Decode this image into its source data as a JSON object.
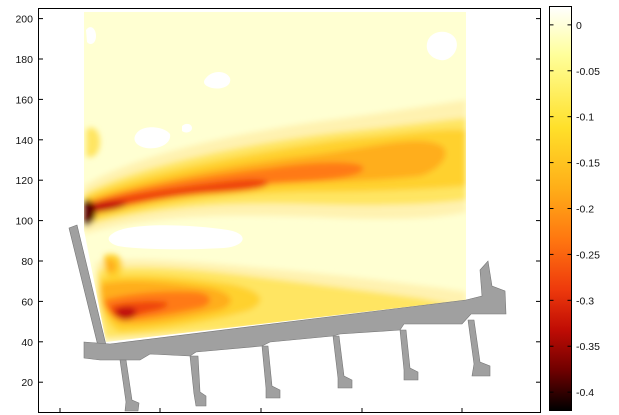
{
  "chart_data": {
    "type": "heatmap",
    "title": "",
    "xlabel": "",
    "ylabel": "",
    "colormap": "hot",
    "ylim": [
      5,
      205
    ],
    "y_ticks": [
      20,
      40,
      60,
      80,
      100,
      120,
      140,
      160,
      180,
      200
    ],
    "colorbar": {
      "range": [
        -0.42,
        0.02
      ],
      "ticks": [
        0,
        -0.05,
        -0.1,
        -0.15,
        -0.2,
        -0.25,
        -0.3,
        -0.35,
        -0.4
      ],
      "tick_labels": [
        "0",
        "-0.05",
        "-0.1",
        "-0.15",
        "-0.2",
        "-0.25",
        "-0.3",
        "-0.35",
        "-0.4"
      ]
    },
    "contour_levels": [
      {
        "value": -0.04,
        "color": "#fff2b0"
      },
      {
        "value": -0.07,
        "color": "#ffe562"
      },
      {
        "value": -0.1,
        "color": "#ffd12e"
      },
      {
        "value": -0.14,
        "color": "#ffae1e"
      },
      {
        "value": -0.19,
        "color": "#ff7a12"
      },
      {
        "value": -0.25,
        "color": "#ef4410"
      },
      {
        "value": -0.31,
        "color": "#c01008"
      },
      {
        "value": -0.38,
        "color": "#5a0000"
      }
    ],
    "background_color": "#ffffd2",
    "structure_color": "#a0a0a0",
    "peak_min": -0.4
  }
}
